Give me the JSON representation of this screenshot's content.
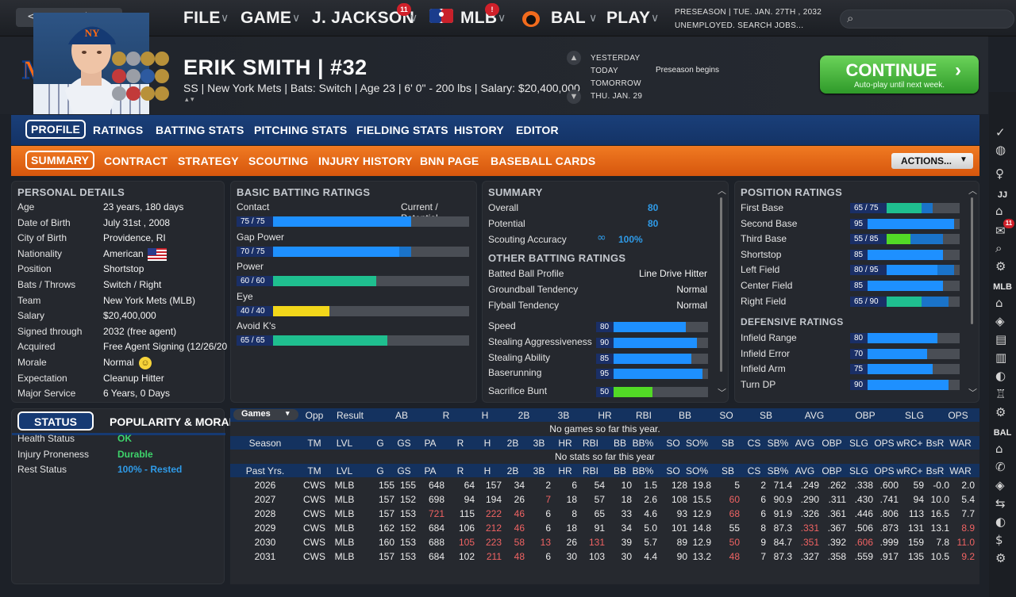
{
  "topbar": {
    "menus": [
      {
        "label": "FILE"
      },
      {
        "label": "GAME"
      },
      {
        "label": "J. JACKSON",
        "badge": "11"
      },
      {
        "label": "MLB",
        "badge": "!"
      },
      {
        "label": "BAL"
      },
      {
        "label": "PLAY"
      }
    ],
    "date_line1": "PRESEASON  |  TUE. JAN. 27TH , 2032",
    "date_line2": "UNEMPLOYED. SEARCH JOBS..."
  },
  "player": {
    "name": "ERIK SMITH  |  #32",
    "info": "SS | New York Mets  |  Bats: Switch  |  Age 23  |  6' 0\" - 200 lbs  |  Salary: $20,400,000"
  },
  "calendar": {
    "days": [
      "YESTERDAY",
      "TODAY",
      "TOMORROW",
      "THU. JAN. 29"
    ],
    "event": "Preseason begins"
  },
  "continue": {
    "label": "CONTINUE",
    "sub": "Auto-play until next week."
  },
  "tabs_main": [
    "PROFILE",
    "RATINGS",
    "BATTING STATS",
    "PITCHING STATS",
    "FIELDING STATS",
    "HISTORY",
    "EDITOR"
  ],
  "tabs_sub": [
    "SUMMARY",
    "CONTRACT",
    "STRATEGY",
    "SCOUTING",
    "INJURY HISTORY",
    "BNN PAGE",
    "BASEBALL CARDS"
  ],
  "actions_label": "ACTIONS...",
  "personal": {
    "title": "PERSONAL DETAILS",
    "rows": [
      {
        "k": "Age",
        "v": "23 years, 180 days"
      },
      {
        "k": "Date of Birth",
        "v": "July 31st , 2008"
      },
      {
        "k": "City of Birth",
        "v": "Providence, RI"
      },
      {
        "k": "Nationality",
        "v": "American"
      },
      {
        "k": "Position",
        "v": "Shortstop"
      },
      {
        "k": "Bats / Throws",
        "v": "Switch / Right"
      },
      {
        "k": "Team",
        "v": "New York Mets (MLB)"
      },
      {
        "k": "Salary",
        "v": "$20,400,000"
      },
      {
        "k": "Signed through",
        "v": "2032 (free agent)"
      },
      {
        "k": "Acquired",
        "v": "Free Agent Signing (12/26/20"
      },
      {
        "k": "Morale",
        "v": "Normal"
      },
      {
        "k": "Expectation",
        "v": "Cleanup Hitter"
      },
      {
        "k": "Major Service",
        "v": "6 Years, 0 Days"
      }
    ]
  },
  "status": {
    "tab_status": "STATUS",
    "tab_popularity": "POPULARITY & MORAL",
    "rows": [
      {
        "k": "Health Status",
        "v": "OK",
        "color": "#3ed46b"
      },
      {
        "k": "Injury Proneness",
        "v": "Durable",
        "color": "#3ed46b"
      },
      {
        "k": "Rest Status",
        "v": "100% - Rested",
        "color": "#2f9be8"
      }
    ]
  },
  "batting": {
    "title": "BASIC BATTING RATINGS",
    "col": "Current / Potential",
    "rows": [
      {
        "name": "Contact",
        "label": "75 / 75",
        "cur": 75,
        "pot": 75,
        "color": "#1e90ff"
      },
      {
        "name": "Gap Power",
        "label": "70 / 75",
        "cur": 70,
        "pot": 75,
        "color": "#1e90ff"
      },
      {
        "name": "Power",
        "label": "60 / 60",
        "cur": 60,
        "pot": 60,
        "color": "#1fbf8f"
      },
      {
        "name": "Eye",
        "label": "40 / 40",
        "cur": 40,
        "pot": 40,
        "color": "#f2d71a"
      },
      {
        "name": "Avoid K's",
        "label": "65 / 65",
        "cur": 65,
        "pot": 65,
        "color": "#1fbf8f"
      }
    ]
  },
  "summary": {
    "title": "SUMMARY",
    "overall_k": "Overall",
    "overall_v": "80",
    "potential_k": "Potential",
    "potential_v": "80",
    "scout_k": "Scouting Accuracy",
    "scout_v": "100%",
    "other_title": "OTHER BATTING RATINGS",
    "other": [
      {
        "k": "Batted Ball Profile",
        "v": "Line Drive Hitter"
      },
      {
        "k": "Groundball Tendency",
        "v": "Normal"
      },
      {
        "k": "Flyball Tendency",
        "v": "Normal"
      }
    ],
    "bars": [
      {
        "k": "Speed",
        "v": 80,
        "label": "80",
        "color": "#1e90ff"
      },
      {
        "k": "Stealing Aggressiveness",
        "v": 90,
        "label": "90",
        "color": "#1e90ff"
      },
      {
        "k": "Stealing Ability",
        "v": 85,
        "label": "85",
        "color": "#1e90ff"
      },
      {
        "k": "Baserunning",
        "v": 95,
        "label": "95",
        "color": "#1e90ff"
      },
      {
        "k": "Sacrifice Bunt",
        "v": 50,
        "label": "50",
        "color": "#52d926"
      }
    ]
  },
  "position": {
    "title": "POSITION RATINGS",
    "rows": [
      {
        "k": "First Base",
        "label": "65 / 75",
        "cur": 65,
        "pot": 75,
        "color": "#1fbf8f"
      },
      {
        "k": "Second Base",
        "label": "95",
        "cur": 95,
        "pot": 95,
        "color": "#1e90ff"
      },
      {
        "k": "Third Base",
        "label": "55 / 85",
        "cur": 55,
        "pot": 85,
        "color": "#52d926"
      },
      {
        "k": "Shortstop",
        "label": "85",
        "cur": 85,
        "pot": 85,
        "color": "#1e90ff"
      },
      {
        "k": "Left Field",
        "label": "80 / 95",
        "cur": 80,
        "pot": 95,
        "color": "#1e90ff"
      },
      {
        "k": "Center Field",
        "label": "85",
        "cur": 85,
        "pot": 85,
        "color": "#1e90ff"
      },
      {
        "k": "Right Field",
        "label": "65 / 90",
        "cur": 65,
        "pot": 90,
        "color": "#1fbf8f"
      }
    ],
    "def_title": "DEFENSIVE RATINGS",
    "def": [
      {
        "k": "Infield Range",
        "label": "80",
        "v": 80,
        "color": "#1e90ff"
      },
      {
        "k": "Infield Error",
        "label": "70",
        "v": 70,
        "color": "#1e90ff"
      },
      {
        "k": "Infield Arm",
        "label": "75",
        "v": 75,
        "color": "#1e90ff"
      },
      {
        "k": "Turn DP",
        "label": "90",
        "v": 90,
        "color": "#1e90ff"
      }
    ]
  },
  "games": {
    "select": "Games",
    "headers": [
      "Opp",
      "Result",
      "AB",
      "R",
      "H",
      "2B",
      "3B",
      "HR",
      "RBI",
      "BB",
      "SO",
      "SB",
      "AVG",
      "OBP",
      "SLG",
      "OPS"
    ],
    "empty": "No games so far this year."
  },
  "season": {
    "headers": [
      "Season",
      "TM",
      "LVL",
      "G",
      "GS",
      "PA",
      "R",
      "H",
      "2B",
      "3B",
      "HR",
      "RBI",
      "BB",
      "BB%",
      "SO",
      "SO%",
      "SB",
      "CS",
      "SB%",
      "AVG",
      "OBP",
      "SLG",
      "OPS",
      "wRC+",
      "BsR",
      "WAR"
    ],
    "empty": "No stats so far this year"
  },
  "past": {
    "headers": [
      "Past Yrs.",
      "TM",
      "LVL",
      "G",
      "GS",
      "PA",
      "R",
      "H",
      "2B",
      "3B",
      "HR",
      "RBI",
      "BB",
      "BB%",
      "SO",
      "SO%",
      "SB",
      "CS",
      "SB%",
      "AVG",
      "OBP",
      "SLG",
      "OPS",
      "wRC+",
      "BsR",
      "WAR"
    ],
    "rows": [
      [
        "2026",
        "CWS",
        "MLB",
        "155",
        "155",
        "648",
        "64",
        "157",
        "34",
        "2",
        "6",
        "54",
        "10",
        "1.5",
        "128",
        "19.8",
        "5",
        "2",
        "71.4",
        ".249",
        ".262",
        ".338",
        ".600",
        "59",
        "-0.0",
        "2.0"
      ],
      [
        "2027",
        "CWS",
        "MLB",
        "157",
        "152",
        "698",
        "94",
        "194",
        "26",
        "7",
        "18",
        "57",
        "18",
        "2.6",
        "108",
        "15.5",
        "60",
        "6",
        "90.9",
        ".290",
        ".311",
        ".430",
        ".741",
        "94",
        "10.0",
        "5.4"
      ],
      [
        "2028",
        "CWS",
        "MLB",
        "157",
        "153",
        "721",
        "115",
        "222",
        "46",
        "6",
        "8",
        "65",
        "33",
        "4.6",
        "93",
        "12.9",
        "68",
        "6",
        "91.9",
        ".326",
        ".361",
        ".446",
        ".806",
        "113",
        "16.5",
        "7.7"
      ],
      [
        "2029",
        "CWS",
        "MLB",
        "162",
        "152",
        "684",
        "106",
        "212",
        "46",
        "6",
        "18",
        "91",
        "34",
        "5.0",
        "101",
        "14.8",
        "55",
        "8",
        "87.3",
        ".331",
        ".367",
        ".506",
        ".873",
        "131",
        "13.1",
        "8.9"
      ],
      [
        "2030",
        "CWS",
        "MLB",
        "160",
        "153",
        "688",
        "105",
        "223",
        "58",
        "13",
        "26",
        "131",
        "39",
        "5.7",
        "89",
        "12.9",
        "50",
        "9",
        "84.7",
        ".351",
        ".392",
        ".606",
        ".999",
        "159",
        "7.8",
        "11.0"
      ],
      [
        "2031",
        "CWS",
        "MLB",
        "157",
        "153",
        "684",
        "102",
        "211",
        "48",
        "6",
        "30",
        "103",
        "30",
        "4.4",
        "90",
        "13.2",
        "48",
        "7",
        "87.3",
        ".327",
        ".358",
        ".559",
        ".917",
        "135",
        "10.5",
        "9.2"
      ]
    ],
    "red": [
      [],
      [
        9,
        16
      ],
      [
        5,
        7,
        8,
        16
      ],
      [
        7,
        8,
        19,
        25
      ],
      [
        6,
        7,
        8,
        9,
        11,
        16,
        19,
        21,
        25
      ],
      [
        7,
        8,
        16,
        25
      ]
    ]
  },
  "sidebar": {
    "labels": [
      "JJ",
      "MLB",
      "BAL"
    ],
    "mail_badge": "11"
  }
}
